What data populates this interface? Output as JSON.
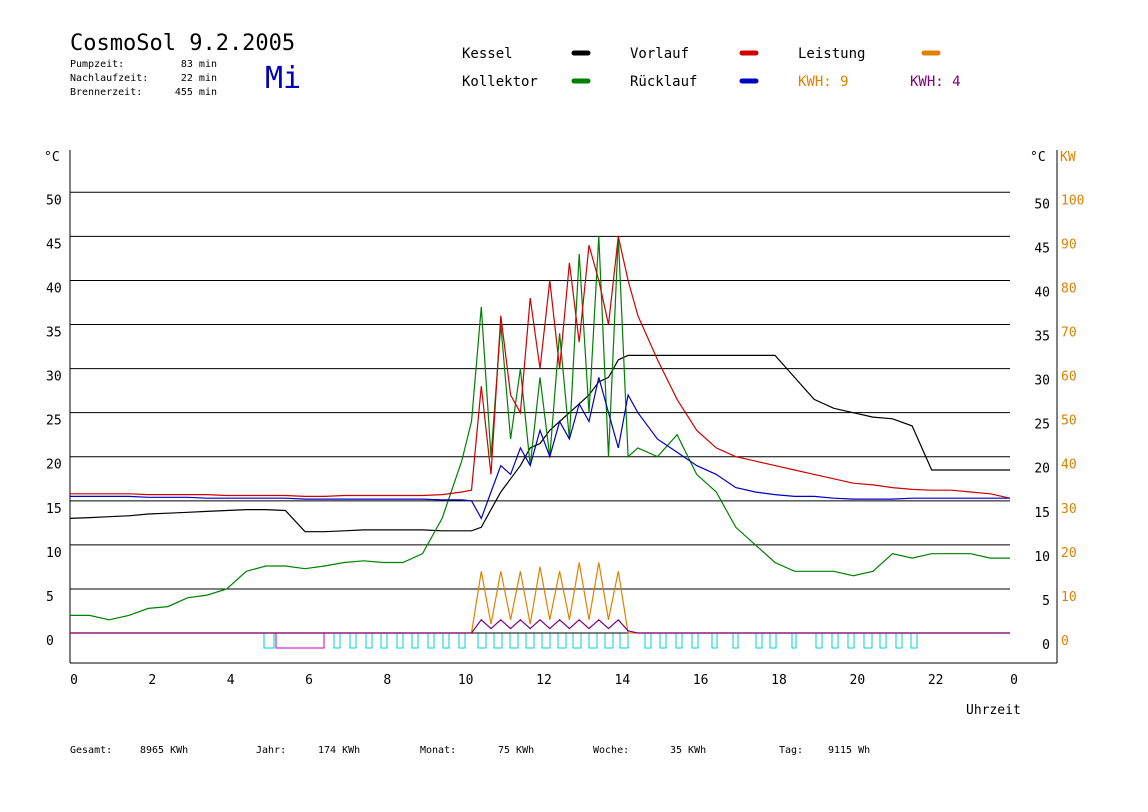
{
  "header": {
    "title": "CosmoSol 9.2.2005",
    "day": "Mi",
    "stats": [
      {
        "label": "Pumpzeit:",
        "value": "83 min"
      },
      {
        "label": "Nachlaufzeit:",
        "value": "22 min"
      },
      {
        "label": "Brennerzeit:",
        "value": "455 min"
      }
    ]
  },
  "chart_data": {
    "type": "line",
    "y_unit": "°C",
    "y2_unit_left": "°C",
    "y2_unit": "KW",
    "x_label": "Uhrzeit",
    "x": [
      0,
      0.5,
      1,
      1.5,
      2,
      2.5,
      3,
      3.5,
      4,
      4.5,
      5,
      5.5,
      6,
      6.5,
      7,
      7.5,
      8,
      8.5,
      9,
      9.5,
      10,
      10.25,
      10.5,
      10.75,
      11,
      11.25,
      11.5,
      11.75,
      12,
      12.25,
      12.5,
      12.75,
      13,
      13.25,
      13.5,
      13.75,
      14,
      14.25,
      14.5,
      15,
      15.5,
      16,
      16.5,
      17,
      17.5,
      18,
      18.5,
      19,
      19.5,
      20,
      20.5,
      21,
      21.5,
      22,
      22.5,
      23,
      23.5,
      24
    ],
    "xlim": [
      0,
      24
    ],
    "xticks": [
      0,
      2,
      4,
      6,
      8,
      10,
      12,
      14,
      16,
      18,
      20,
      22,
      {
        "value": 24,
        "label": "0"
      }
    ],
    "ylim": [
      -3.4,
      54.8
    ],
    "yticks": [
      0,
      5,
      10,
      15,
      20,
      25,
      30,
      35,
      40,
      45,
      50
    ],
    "y2lim": [
      -6.8,
      109.6
    ],
    "y2ticks": [
      0,
      10,
      20,
      30,
      40,
      50,
      60,
      70,
      80,
      90,
      100
    ],
    "grid": true,
    "series": [
      {
        "name": "Kessel",
        "color": "#000000",
        "values": [
          13,
          13.1,
          13.2,
          13.3,
          13.5,
          13.6,
          13.7,
          13.8,
          13.9,
          14,
          14,
          13.9,
          11.5,
          11.5,
          11.6,
          11.7,
          11.7,
          11.7,
          11.7,
          11.6,
          11.6,
          11.6,
          12,
          14,
          16,
          17.5,
          19,
          21,
          21.5,
          23,
          24,
          25,
          26,
          27,
          28.5,
          29,
          31,
          31.5,
          31.5,
          31.5,
          31.5,
          31.5,
          31.5,
          31.5,
          31.5,
          31.5,
          29,
          26.5,
          25.5,
          25,
          24.5,
          24.3,
          23.5,
          18.5,
          18.5,
          18.5,
          18.5,
          18.5
        ]
      },
      {
        "name": "Kollektor",
        "color": "#008000",
        "values": [
          2,
          2,
          1.5,
          2,
          2.8,
          3,
          4,
          4.3,
          5,
          7,
          7.6,
          7.6,
          7.3,
          7.6,
          8,
          8.2,
          8,
          8,
          9,
          13,
          19.5,
          24,
          37,
          20,
          35,
          22,
          30,
          19,
          29,
          20,
          34,
          22,
          43,
          25,
          45,
          20,
          45,
          20,
          21,
          20,
          22.5,
          18,
          16,
          12,
          10,
          8,
          7,
          7,
          7,
          6.5,
          7,
          9,
          8.5,
          9,
          9,
          9,
          8.5,
          8.5
        ]
      },
      {
        "name": "Vorlauf",
        "color": "#d00000",
        "values": [
          15.8,
          15.8,
          15.8,
          15.8,
          15.7,
          15.7,
          15.7,
          15.7,
          15.6,
          15.6,
          15.6,
          15.6,
          15.5,
          15.5,
          15.6,
          15.6,
          15.6,
          15.6,
          15.6,
          15.7,
          16,
          16.2,
          28,
          18,
          36,
          27,
          25,
          38,
          30,
          40,
          30,
          42,
          33,
          44,
          40,
          35,
          45,
          40,
          36,
          31,
          26.5,
          23,
          21,
          20,
          19.5,
          19,
          18.5,
          18,
          17.5,
          17,
          16.8,
          16.5,
          16.3,
          16.2,
          16.2,
          16,
          15.8,
          15.3
        ]
      },
      {
        "name": "Rücklauf",
        "color": "#0000c0",
        "values": [
          15.5,
          15.5,
          15.5,
          15.5,
          15.4,
          15.4,
          15.4,
          15.3,
          15.3,
          15.3,
          15.3,
          15.3,
          15.2,
          15.2,
          15.2,
          15.2,
          15.2,
          15.2,
          15.2,
          15.1,
          15.1,
          15,
          13,
          16,
          19,
          18,
          21,
          19,
          23,
          20,
          24,
          22,
          26,
          24,
          29,
          25,
          21,
          27,
          25,
          22,
          20.5,
          19,
          18,
          16.5,
          16,
          15.7,
          15.5,
          15.5,
          15.3,
          15.2,
          15.2,
          15.2,
          15.3,
          15.3,
          15.3,
          15.3,
          15.3,
          15.3
        ]
      },
      {
        "name": "Leistung",
        "color": "#e08000",
        "axis": "y2",
        "values": [
          0,
          0,
          0,
          0,
          0,
          0,
          0,
          0,
          0,
          0,
          0,
          0,
          0,
          0,
          0,
          0,
          0,
          0,
          0,
          0,
          0,
          0,
          14,
          2,
          14,
          3,
          14,
          2,
          15,
          3,
          14,
          3,
          16,
          3,
          16,
          3,
          14,
          0,
          0,
          0,
          0,
          0,
          0,
          0,
          0,
          0,
          0,
          0,
          0,
          0,
          0,
          0,
          0,
          0,
          0,
          0,
          0,
          0
        ]
      },
      {
        "color": "#800080",
        "axis": "y2",
        "values": [
          0,
          0,
          0,
          0,
          0,
          0,
          0,
          0,
          0,
          0,
          0,
          0,
          0,
          0,
          0,
          0,
          0,
          0,
          0,
          0,
          0,
          0,
          3,
          1,
          3,
          1,
          3,
          1,
          3,
          1,
          3,
          1,
          3,
          1,
          3,
          1,
          3,
          0.5,
          0,
          0,
          0,
          0,
          0,
          0,
          0,
          0,
          0,
          0,
          0,
          0,
          0,
          0,
          0,
          0,
          0,
          0,
          0,
          0
        ]
      }
    ],
    "annotations": [
      {
        "text": "KWH: 9",
        "color": "#e08000"
      },
      {
        "text": "KWH: 4",
        "color": "#800080"
      }
    ]
  },
  "footer": [
    {
      "label": "Gesamt:",
      "value": "8965 KWh"
    },
    {
      "label": "Jahr:",
      "value": "174 KWh"
    },
    {
      "label": "Monat:",
      "value": "75 KWh"
    },
    {
      "label": "Woche:",
      "value": "35 KWh"
    },
    {
      "label": "Tag:",
      "value": "9115 Wh"
    }
  ]
}
